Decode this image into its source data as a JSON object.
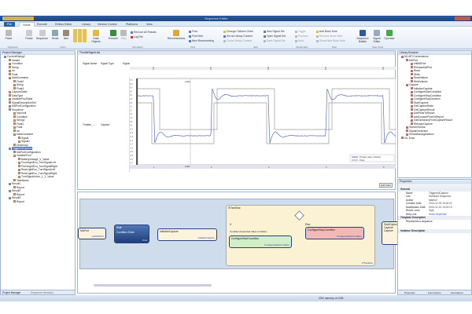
{
  "window": {
    "title": "Sequence Editor"
  },
  "tabs": [
    {
      "label": "File"
    },
    {
      "label": "Home"
    },
    {
      "label": "Execute"
    },
    {
      "label": "Reflow Editor"
    },
    {
      "label": "Library"
    },
    {
      "label": "Version Control"
    },
    {
      "label": "Platforms"
    },
    {
      "label": "View"
    }
  ],
  "ribbon": {
    "clipboard": {
      "paste": "Paste",
      "label": "Clipboard"
    },
    "insert": {
      "folder": "Folder",
      "sequence": "Sequence",
      "serial": "Serial",
      "item": "Item",
      "data_objects": "Data Objects",
      "label": "Insert"
    },
    "simulation": {
      "execute": "Execute",
      "step": "Step",
      "remove_results": "Remove All Results",
      "log_file": "Log File",
      "label": "Simulation"
    },
    "find": {
      "reconnections": "Reconnections",
      "find": "Find...",
      "find_next": "Find Next",
      "next_reconnecting": "Next Reconnecting",
      "label": "Find"
    },
    "edit": {
      "change_children_order": "Change Children Order",
      "set_library_content": "Set as Library Content",
      "clone_library_content": "Clone Library Content",
      "new_signal_set": "New Signal Set",
      "open_signal_set": "Open Signal Set",
      "save_signal_set": "Save Signal Set",
      "label": "Edit"
    },
    "bookmarks": {
      "toggle": "Toggle",
      "previous": "Previous",
      "next": "Next",
      "label": "Bookmarks"
    },
    "note": {
      "add_block_note": "Add Block Note",
      "remove_block_note": "Remove Block Note",
      "show_hide": "Show/Hide Block Note",
      "label": "Note"
    },
    "view_tools": {
      "sequence_builder": "Sequence Builder",
      "signal_editor": "Signal Editor",
      "operator": "Operator",
      "label": "View Tools"
    }
  },
  "project_manager": {
    "title": "Project Manager",
    "items": [
      {
        "label": "ContentDialog2",
        "level": 0,
        "type": "b"
      },
      {
        "label": "Variant",
        "level": 1
      },
      {
        "label": "Condition",
        "level": 1
      },
      {
        "label": "String",
        "level": 1
      },
      {
        "label": "Int",
        "level": 1
      },
      {
        "label": "Float",
        "level": 1
      },
      {
        "label": "DataContainer",
        "level": 1
      },
      {
        "label": "Float2",
        "level": 2
      },
      {
        "label": "String",
        "level": 2
      },
      {
        "label": "Float3",
        "level": 2
      },
      {
        "label": "CaptureState",
        "level": 1
      },
      {
        "label": "DataType",
        "level": 1
      },
      {
        "label": "VariablePoolTable",
        "level": 1
      },
      {
        "label": "SignalDescriptionSet",
        "level": 1
      },
      {
        "label": "MAPortConfiguration",
        "level": 1,
        "type": "g"
      },
      {
        "label": "Sequence",
        "level": 1,
        "type": "b"
      },
      {
        "label": "mycondi",
        "level": 2
      },
      {
        "label": "Condition",
        "level": 2
      },
      {
        "label": "String2",
        "level": 2
      },
      {
        "label": "Float2",
        "level": 2
      },
      {
        "label": "Float",
        "level": 2
      },
      {
        "label": "int",
        "level": 2
      },
      {
        "label": "DataContainer",
        "level": 2
      },
      {
        "label": "Signal",
        "level": 3
      },
      {
        "label": "Signal1",
        "level": 3
      },
      {
        "label": "Dictionary",
        "level": 2
      },
      {
        "label": "TriggeredCapture",
        "level": 1,
        "type": "b",
        "selected": true
      },
      {
        "label": "MAPortConfiguration",
        "level": 2,
        "type": "g"
      },
      {
        "label": "VariablePool",
        "level": 2
      },
      {
        "label": "BatteryVoltage_V_Value",
        "level": 3
      },
      {
        "label": "FrontLightEcu_TurnSignalLeft",
        "level": 3
      },
      {
        "label": "FrontLightEcu_TurnSignalRight",
        "level": 3
      },
      {
        "label": "RearLightEcu_TurnSignalLeft",
        "level": 3
      },
      {
        "label": "RearLightEcu_TurnSignalRight",
        "level": 3
      },
      {
        "label": "TurnSignalLever_1_1_Value",
        "level": 3
      },
      {
        "label": "TaskName",
        "level": 2
      },
      {
        "label": "Result1",
        "level": 1,
        "type": "b"
      },
      {
        "label": "Report",
        "level": 2
      },
      {
        "label": "Result2",
        "level": 1,
        "type": "b"
      },
      {
        "label": "Report",
        "level": 2
      },
      {
        "label": "Result3",
        "level": 1,
        "type": "b"
      },
      {
        "label": "Report",
        "level": 2
      }
    ],
    "bottom_tabs": [
      "Project Manager",
      "Sequence Hierarchy"
    ]
  },
  "signal_editor": {
    "doc_tab": "ThrottleSignal.sts",
    "columns": [
      "Signal Name",
      "Signal Type",
      "Signal"
    ],
    "row": {
      "name": "Throttle_...",
      "type": "Capture"
    },
    "y_ticks": [
      "7.5",
      "6.9",
      "6.3",
      "5.7",
      "5.1",
      "4.5",
      "3.9",
      "3.3",
      "2.7",
      "2.1",
      "1.5",
      "0.9",
      "0.3",
      "-0.3",
      "-0.9",
      "-1.5",
      "-2.1",
      "-2.7",
      "-3.3",
      "-3.9",
      "-4.5",
      "-5.1",
      "-5.7"
    ],
    "x_ticks": [
      "1",
      "2",
      "3",
      "4",
      "5"
    ],
    "cursor_top": "4.300",
    "cursor_bottom": "4.301",
    "legend": [
      "Throttle_Valve_Position",
      "Pulse"
    ],
    "edit_button": "Edit Filter",
    "line_color": "#5a6fc0",
    "bound_color": "#9a9a9a"
  },
  "sequence": {
    "nodes": {
      "maport": "MAPort",
      "maport_sub": "sublMAPort",
      "wait": "Wait",
      "wait_cond": "Condition Enter",
      "wait_sub": "Wait",
      "init": "InitializeCapture",
      "init_sub": "InitializeCapture",
      "ifelse": "IfThenElse",
      "ifelse_sub": "IfThenElse",
      "if": "If",
      "else": "Else",
      "cond_text": "Condition Extended Value is hidden",
      "cfg_true": "ConfigureStartCondition",
      "cfg_true_sub": "ConfigureStartCondition",
      "cfg_false": "ConfigureStopCondition",
      "cfg_false_sub": "ConfigureStartCondition",
      "start": "StartCapture",
      "start_items": [
        "Capture",
        "Capture"
      ]
    }
  },
  "library_browser": {
    "title": "Library Browser",
    "items": [
      {
        "label": "ML API Convenience",
        "level": 0
      },
      {
        "label": "MAPort",
        "level": 1
      },
      {
        "label": "InitMAPort",
        "level": 2
      },
      {
        "label": "ReleaseMAPort",
        "level": 2
      },
      {
        "label": "Read",
        "level": 2
      },
      {
        "label": "Write",
        "level": 2
      },
      {
        "label": "ReadValues",
        "level": 2
      },
      {
        "label": "WriteValues",
        "level": 2
      },
      {
        "label": "Capture",
        "level": 1
      },
      {
        "label": "InitializeCapture",
        "level": 2
      },
      {
        "label": "ConfigureStartCondition",
        "level": 2
      },
      {
        "label": "ConfigureStopCondition",
        "level": 2
      },
      {
        "label": "ConfigureStopDuration",
        "level": 2
      },
      {
        "label": "StartCapture",
        "level": 2
      },
      {
        "label": "GetCaptureState",
        "level": 2
      },
      {
        "label": "GetCaptureResult",
        "level": 2
      },
      {
        "label": "AddPlotsToReport",
        "level": 2
      },
      {
        "label": "AddCustomPlotsToReport",
        "level": 2
      },
      {
        "label": "GetDictionaryFromCaptureResult",
        "level": 2
      },
      {
        "label": "ReleaseCapture",
        "level": 2
      },
      {
        "label": "StreamToDisk",
        "level": 1
      },
      {
        "label": "SignalGenerator",
        "level": 1
      },
      {
        "label": "SimulationApplication",
        "level": 1
      },
      {
        "label": "XIL Evac",
        "level": 0
      }
    ]
  },
  "properties": {
    "title": "Properties",
    "general": "General",
    "rows": [
      [
        "Name",
        "TriggeredCapture"
      ],
      [
        "Link",
        "Standard Sequence"
      ],
      [
        "Author",
        "MartinZ"
      ],
      [
        "Creation Date",
        "2014-12-09 15:26:21"
      ],
      [
        "Modification Date",
        "2014-12-15 13:03:19"
      ],
      [
        "Result Level",
        "High"
      ],
      [
        "Help Link",
        "Show HelpDesk"
      ]
    ],
    "template_description": "Template Description",
    "template_text": "Represents a sequence",
    "instance_description": "Instance Description",
    "bottom_tabs": [
      "Properties",
      "Found Items",
      "Annotations"
    ]
  },
  "status": {
    "memory": "23% memory of 4GB"
  }
}
